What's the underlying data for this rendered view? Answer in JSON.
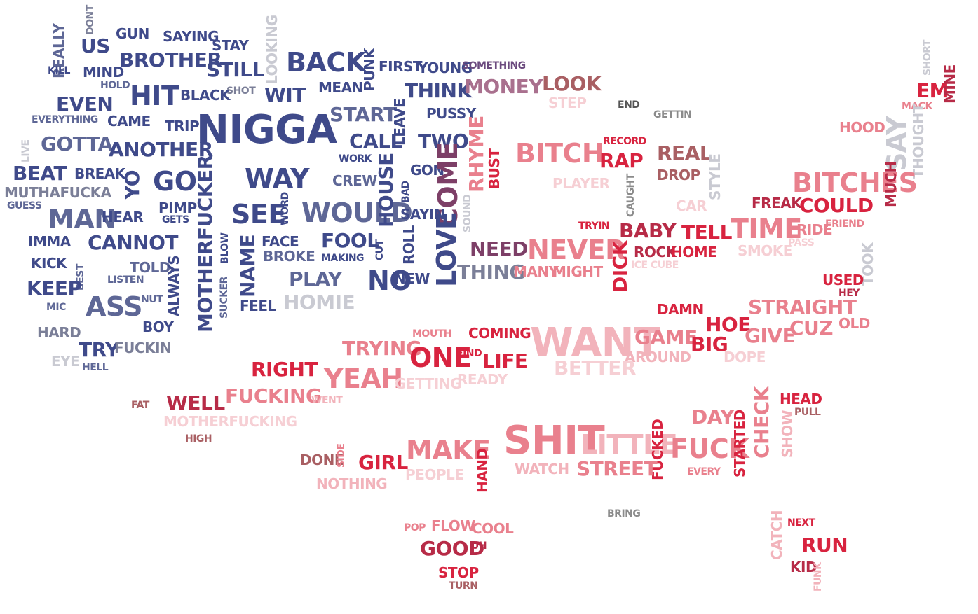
{
  "palette": {
    "navy": "#3f4a8a",
    "blue_gray": "#5e6796",
    "slate": "#7b7f98",
    "light_gray": "#c9cad2",
    "plum": "#7d3f67",
    "mauve": "#a9708e",
    "rose": "#e9808d",
    "pink": "#f2b3bb",
    "light_pink": "#f6cfd4",
    "red": "#d8233f",
    "crimson": "#b72b47",
    "brown_rose": "#a95f63",
    "gray": "#8b8b8b"
  },
  "words": [
    "REALLY",
    "DONT",
    "GUN",
    "SAYING",
    "US",
    "STAY",
    "LOOKING",
    "BACK",
    "PUNK",
    "FIRST",
    "YOUNG",
    "SOMETHING",
    "SHORT",
    "KILL",
    "MIND",
    "BROTHER",
    "STILL",
    "HOLD",
    "HIT",
    "BLACK",
    "SHOT",
    "WIT",
    "MEAN",
    "THINK",
    "MONEY",
    "LOOK",
    "STEP",
    "EM",
    "MINE",
    "MACK",
    "EVEN",
    "EVERYTHING",
    "CAME",
    "TRIP",
    "NIGGA",
    "START",
    "LEAVE",
    "PUSSY",
    "END",
    "GETTIN",
    "HOOD",
    "LIVE",
    "GOTTA",
    "ANOTHER",
    "CALL",
    "WORK",
    "TWO",
    "RECORD",
    "BITCH",
    "RAP",
    "REAL",
    "SAY",
    "THOUGHT",
    "BEAT",
    "BREAK",
    "YO",
    "GO",
    "WAY",
    "CREW",
    "GON",
    "BUST",
    "RHYME",
    "DROP",
    "STYLE",
    "BITCHES",
    "MUTHAFUCKA",
    "GUESS",
    "PIMP",
    "GETS",
    "MOTHERFUCKER",
    "SEE",
    "WOULD",
    "HOUSE",
    "BAD",
    "COME",
    "PLAYER",
    "CAUGHT",
    "CAR",
    "FREAK",
    "COULD",
    "MUCH",
    "MAN",
    "HEAR",
    "WORD",
    "SAYIN",
    "SOUND",
    "TRYIN",
    "BABY",
    "TELL",
    "TIME",
    "RIDE",
    "FRIEND",
    "IMMA",
    "CANNOT",
    "FACE",
    "FOOL",
    "CUT",
    "ROLL",
    "NEED",
    "NEVER",
    "SMOKE",
    "PASS",
    "KICK",
    "TOLD",
    "BLOW",
    "BROKE",
    "MAKING",
    "LOVE",
    "ROCK",
    "HOME",
    "BEST",
    "ALWAYS",
    "NAME",
    "THING",
    "MANY",
    "MIGHT",
    "DICK",
    "ICE CUBE",
    "TOOK",
    "LISTEN",
    "PLAY",
    "NO",
    "NEW",
    "USED",
    "HEY",
    "KEEP",
    "NUT",
    "MIC",
    "ASS",
    "SUCKER",
    "FEEL",
    "HOMIE",
    "DAMN",
    "STRAIGHT",
    "HOE",
    "OLD",
    "BOY",
    "HARD",
    "MOUTH",
    "COMING",
    "WANT",
    "GAME",
    "BIG",
    "GIVE",
    "CUZ",
    "TRY",
    "FUCKIN",
    "TRYING",
    "ONE",
    "FIND",
    "LIFE",
    "AROUND",
    "DOPE",
    "EYE",
    "HELL",
    "RIGHT",
    "YEAH",
    "GETTING",
    "READY",
    "BETTER",
    "FAT",
    "WELL",
    "FUCKING",
    "WENT",
    "MOTHERFUCKING",
    "DAY",
    "CHECK",
    "HEAD",
    "PULL",
    "HIGH",
    "SHIT",
    "LITTLE",
    "FUCKED",
    "FUCK",
    "STARTED",
    "SHOW",
    "DONE",
    "SIDE",
    "GIRL",
    "MAKE",
    "HAND",
    "WATCH",
    "STREET",
    "EVERY",
    "NOTHING",
    "PEOPLE",
    "BRING",
    "POP",
    "FLOW",
    "COOL",
    "CATCH",
    "NEXT",
    "GOOD",
    "UH",
    "RUN",
    "KID",
    "FUNK",
    "STOP",
    "TURN"
  ]
}
